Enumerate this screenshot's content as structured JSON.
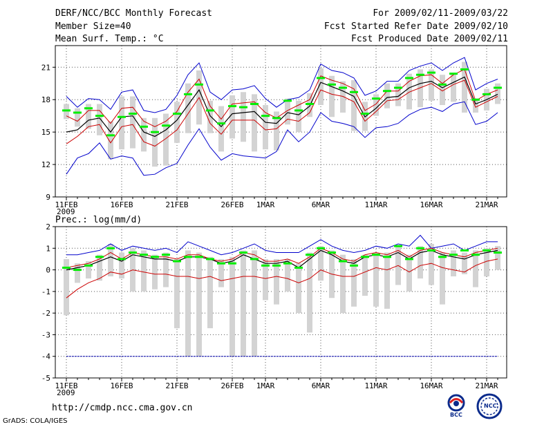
{
  "header": {
    "title": "DERF/NCC/BCC Monthly Forecast",
    "member_size": "Member Size=40",
    "variable": "Mean Surf. Temp.: °C",
    "forecast_range": "For 2009/02/11-2009/03/22",
    "started_refer": "Fcst Started Refer Date 2009/02/10",
    "produced": "Fcst Produced Date 2009/02/11"
  },
  "precip_title": "Prec.: log(mm/d)",
  "footer": {
    "url": "http://cmdp.ncc.cma.gov.cn",
    "credit": "GrADS: COLA/IGES",
    "logo_bcc": "BCC",
    "logo_ncc": "NCC"
  },
  "colors": {
    "max_min": "#0000cc",
    "sd": "#cc0000",
    "mean": "#000000",
    "box": "#d3d3d3",
    "median": "#00ee00",
    "ref": "#0000aa"
  },
  "chart_data": [
    {
      "id": "temperature",
      "type": "line",
      "title": "Mean Surf. Temp.: °C",
      "ylim": [
        9,
        23
      ],
      "yticks": [
        9,
        12,
        15,
        18,
        21
      ],
      "x_tick_labels": [
        "11FEB",
        "16FEB",
        "21FEB",
        "26FEB",
        "1MAR",
        "6MAR",
        "11MAR",
        "16MAR",
        "21MAR"
      ],
      "x_tick_index": [
        0,
        5,
        10,
        15,
        18,
        23,
        28,
        33,
        38
      ],
      "year_label": "2009",
      "days": 40,
      "series": [
        {
          "name": "max",
          "values": [
            18.3,
            17.3,
            18.1,
            18.0,
            17.1,
            18.7,
            18.9,
            17.0,
            16.8,
            17.1,
            18.4,
            20.3,
            21.4,
            18.7,
            18.0,
            18.9,
            19.0,
            19.3,
            18.1,
            17.3,
            18.0,
            18.2,
            18.9,
            21.3,
            20.7,
            20.5,
            20.0,
            18.4,
            18.8,
            19.7,
            19.7,
            20.7,
            21.1,
            21.4,
            20.7,
            21.4,
            21.9,
            18.9,
            19.5,
            19.9
          ]
        },
        {
          "name": "mean_plus_sd",
          "values": [
            16.5,
            16.0,
            17.0,
            17.0,
            15.8,
            17.2,
            17.3,
            16.0,
            15.5,
            16.0,
            16.9,
            18.7,
            19.9,
            17.4,
            16.2,
            17.6,
            17.7,
            17.8,
            16.8,
            16.3,
            17.0,
            17.5,
            18.0,
            20.2,
            19.8,
            19.5,
            19.0,
            17.0,
            17.6,
            18.8,
            18.8,
            19.7,
            20.2,
            20.3,
            19.5,
            20.3,
            20.8,
            17.9,
            18.5,
            18.9
          ]
        },
        {
          "name": "mean",
          "values": [
            15.0,
            15.2,
            16.1,
            16.3,
            15.0,
            16.4,
            16.5,
            15.0,
            14.6,
            15.2,
            16.1,
            17.5,
            18.9,
            16.5,
            15.5,
            16.7,
            16.8,
            16.9,
            15.9,
            15.8,
            16.8,
            16.6,
            17.4,
            19.6,
            19.2,
            18.8,
            18.3,
            16.4,
            17.2,
            18.2,
            18.3,
            19.1,
            19.5,
            19.7,
            19.1,
            19.6,
            20.1,
            17.6,
            18.0,
            18.5
          ]
        },
        {
          "name": "mean_minus_sd",
          "values": [
            13.9,
            14.6,
            15.5,
            15.7,
            14.0,
            15.5,
            15.7,
            14.1,
            13.7,
            14.4,
            15.2,
            16.7,
            18.2,
            15.8,
            14.8,
            16.1,
            16.1,
            16.1,
            15.2,
            15.3,
            16.2,
            16.0,
            16.8,
            18.9,
            18.5,
            18.3,
            17.8,
            16.0,
            16.9,
            17.9,
            18.0,
            18.7,
            19.1,
            19.5,
            18.8,
            19.4,
            19.8,
            17.3,
            17.8,
            18.3
          ]
        },
        {
          "name": "min",
          "values": [
            11.1,
            12.6,
            13.0,
            14.0,
            12.5,
            12.8,
            12.6,
            11.0,
            11.1,
            11.7,
            12.1,
            13.8,
            15.3,
            13.6,
            12.4,
            13.0,
            12.8,
            12.7,
            12.6,
            13.2,
            15.2,
            14.1,
            15.0,
            16.8,
            16.0,
            15.8,
            15.5,
            14.5,
            15.4,
            15.5,
            15.8,
            16.6,
            17.1,
            17.3,
            16.9,
            17.6,
            17.8,
            15.7,
            16.0,
            16.8
          ]
        },
        {
          "name": "median",
          "values": [
            17.0,
            16.8,
            17.2,
            16.5,
            14.7,
            16.4,
            16.7,
            15.5,
            15.0,
            15.6,
            16.7,
            18.5,
            19.4,
            17.0,
            15.8,
            17.4,
            17.3,
            17.6,
            16.5,
            16.3,
            17.9,
            17.0,
            17.6,
            20.0,
            19.4,
            19.1,
            18.7,
            16.7,
            18.1,
            18.8,
            19.1,
            20.0,
            20.3,
            20.5,
            19.4,
            20.4,
            20.8,
            18.0,
            18.5,
            19.1
          ]
        },
        {
          "name": "box_top",
          "values": [
            17.6,
            17.2,
            17.6,
            17.6,
            16.0,
            18.3,
            18.3,
            16.3,
            16.3,
            16.7,
            17.8,
            19.5,
            20.7,
            17.9,
            17.4,
            18.4,
            18.7,
            18.5,
            17.5,
            16.9,
            18.1,
            17.9,
            18.6,
            20.9,
            20.2,
            19.7,
            19.8,
            17.8,
            18.5,
            19.5,
            19.5,
            20.4,
            20.8,
            20.8,
            20.3,
            20.5,
            21.5,
            18.1,
            19.0,
            19.5
          ]
        },
        {
          "name": "box_bottom",
          "values": [
            16.2,
            15.5,
            15.3,
            14.7,
            12.5,
            13.4,
            13.5,
            13.2,
            11.8,
            11.9,
            14.0,
            14.9,
            15.7,
            14.9,
            13.2,
            14.4,
            14.1,
            13.2,
            13.4,
            13.3,
            15.7,
            15.0,
            16.4,
            17.5,
            16.4,
            16.8,
            15.1,
            15.1,
            16.5,
            17.2,
            17.4,
            17.1,
            17.3,
            17.9,
            17.5,
            17.8,
            16.8,
            16.8,
            17.0,
            17.6
          ]
        }
      ]
    },
    {
      "id": "precipitation",
      "type": "line",
      "title": "Prec.: log(mm/d)",
      "ylim": [
        -5,
        2
      ],
      "yticks": [
        -5,
        -4,
        -3,
        -2,
        -1,
        0,
        1,
        2
      ],
      "reference_line": -4,
      "x_tick_labels": [
        "11FEB",
        "16FEB",
        "21FEB",
        "26FEB",
        "1MAR",
        "6MAR",
        "11MAR",
        "16MAR",
        "21MAR"
      ],
      "x_tick_index": [
        0,
        5,
        10,
        15,
        18,
        23,
        28,
        33,
        38
      ],
      "year_label": "2009",
      "days": 40,
      "series": [
        {
          "name": "max",
          "values": [
            0.7,
            0.7,
            0.8,
            0.9,
            1.2,
            0.9,
            1.1,
            1.0,
            0.9,
            1.0,
            0.8,
            1.3,
            1.1,
            0.9,
            0.7,
            0.8,
            1.0,
            1.2,
            0.9,
            0.8,
            0.8,
            0.8,
            1.1,
            1.4,
            1.1,
            0.9,
            0.8,
            0.9,
            1.1,
            1.0,
            1.2,
            1.1,
            1.6,
            1.0,
            1.1,
            1.2,
            0.9,
            1.1,
            1.3,
            1.3
          ]
        },
        {
          "name": "mean_plus_sd",
          "values": [
            0.1,
            0.2,
            0.3,
            0.5,
            0.8,
            0.5,
            0.8,
            0.7,
            0.6,
            0.6,
            0.5,
            0.7,
            0.7,
            0.5,
            0.4,
            0.5,
            0.8,
            0.7,
            0.4,
            0.4,
            0.5,
            0.3,
            0.6,
            1.0,
            0.8,
            0.5,
            0.4,
            0.7,
            0.8,
            0.7,
            0.9,
            0.6,
            0.9,
            1.0,
            0.8,
            0.7,
            0.6,
            0.8,
            0.9,
            1.0
          ]
        },
        {
          "name": "mean",
          "values": [
            0.0,
            0.1,
            0.2,
            0.4,
            0.6,
            0.4,
            0.7,
            0.6,
            0.5,
            0.5,
            0.4,
            0.6,
            0.6,
            0.5,
            0.3,
            0.4,
            0.7,
            0.5,
            0.3,
            0.3,
            0.4,
            0.1,
            0.5,
            0.9,
            0.7,
            0.4,
            0.3,
            0.6,
            0.7,
            0.6,
            0.8,
            0.5,
            0.8,
            0.9,
            0.7,
            0.6,
            0.5,
            0.7,
            0.8,
            0.9
          ]
        },
        {
          "name": "mean_minus_sd",
          "values": [
            -1.3,
            -0.9,
            -0.6,
            -0.4,
            -0.1,
            -0.2,
            0.0,
            -0.1,
            -0.2,
            -0.2,
            -0.3,
            -0.3,
            -0.4,
            -0.3,
            -0.5,
            -0.4,
            -0.3,
            -0.3,
            -0.4,
            -0.3,
            -0.4,
            -0.6,
            -0.4,
            0.0,
            -0.2,
            -0.3,
            -0.3,
            -0.1,
            0.1,
            0.0,
            0.2,
            -0.1,
            0.2,
            0.3,
            0.1,
            0.0,
            -0.1,
            0.2,
            0.4,
            0.5
          ]
        },
        {
          "name": "min",
          "values": [
            -4,
            -4,
            -4,
            -4,
            -4,
            -4,
            -4,
            -4,
            -4,
            -4,
            -4,
            -4,
            -4,
            -4,
            -4,
            -4,
            -4,
            -4,
            -4,
            -4,
            -4,
            -4,
            -4,
            -4,
            -4,
            -4,
            -4,
            -4,
            -4,
            -4,
            -4,
            -4,
            -4,
            -4,
            -4,
            -4,
            -4,
            -4,
            -4,
            -4
          ]
        },
        {
          "name": "median",
          "values": [
            0.1,
            0.0,
            0.2,
            0.6,
            1.0,
            0.5,
            0.8,
            0.7,
            0.6,
            0.7,
            0.4,
            0.6,
            0.6,
            0.5,
            0.3,
            0.3,
            0.8,
            0.5,
            0.2,
            0.2,
            0.3,
            0.1,
            0.7,
            1.0,
            0.8,
            0.4,
            0.2,
            0.6,
            0.7,
            0.6,
            1.1,
            0.5,
            1.0,
            0.9,
            0.6,
            0.7,
            0.9,
            0.7,
            0.9,
            0.8
          ]
        },
        {
          "name": "box_top",
          "values": [
            0.5,
            0.3,
            0.4,
            0.7,
            1.2,
            0.8,
            1.0,
            0.9,
            0.7,
            0.8,
            0.5,
            0.9,
            0.8,
            0.6,
            0.5,
            0.6,
            0.9,
            0.9,
            0.5,
            0.5,
            0.5,
            0.3,
            0.8,
            1.1,
            0.9,
            0.7,
            0.5,
            0.7,
            0.8,
            0.8,
            1.1,
            0.7,
            1.1,
            1.2,
            0.8,
            0.9,
            0.8,
            0.9,
            1.0,
            1.1
          ]
        },
        {
          "name": "box_bottom",
          "values": [
            -2.1,
            -0.6,
            -0.4,
            -0.5,
            -0.3,
            -0.4,
            -1.0,
            -1.0,
            -0.9,
            -0.8,
            -2.7,
            -4.0,
            -4.0,
            -2.7,
            -0.8,
            -4.0,
            -4.0,
            -4.0,
            -1.4,
            -1.6,
            -1.0,
            -2.0,
            -2.9,
            -0.5,
            -1.3,
            -2.0,
            -1.7,
            -1.2,
            -1.7,
            -1.8,
            -0.7,
            -1.0,
            -0.4,
            -0.7,
            -1.6,
            -0.3,
            -0.2,
            -0.8,
            -0.3,
            0.0
          ]
        }
      ]
    }
  ]
}
